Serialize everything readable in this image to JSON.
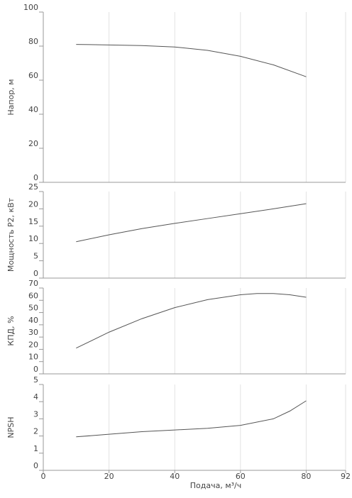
{
  "chart_data": [
    {
      "type": "line",
      "y_label": "Напор, м",
      "color": "#555555",
      "grid": true,
      "x": [
        10,
        20,
        30,
        40,
        50,
        60,
        70,
        80
      ],
      "values": [
        81,
        80.7,
        80.3,
        79.5,
        77.5,
        74,
        69,
        62
      ],
      "xlim": [
        0,
        92
      ],
      "xticks": [
        0,
        20,
        40,
        60,
        80,
        92
      ],
      "ylim": [
        0,
        100
      ],
      "yticks": [
        0,
        20,
        40,
        60,
        80,
        100
      ]
    },
    {
      "type": "line",
      "y_label": "Мощность P2, кВт",
      "color": "#555555",
      "grid": true,
      "x": [
        10,
        20,
        30,
        40,
        50,
        60,
        70,
        80
      ],
      "values": [
        10.5,
        12.5,
        14.3,
        15.8,
        17.2,
        18.6,
        20,
        21.5
      ],
      "xlim": [
        0,
        92
      ],
      "xticks": [
        0,
        20,
        40,
        60,
        80,
        92
      ],
      "ylim": [
        0,
        25
      ],
      "yticks": [
        0,
        5,
        10,
        15,
        20,
        25
      ]
    },
    {
      "type": "line",
      "y_label": "КПД, %",
      "color": "#555555",
      "grid": true,
      "x": [
        10,
        20,
        30,
        40,
        50,
        60,
        65,
        70,
        75,
        80
      ],
      "values": [
        21,
        34,
        45,
        54,
        60.5,
        64.5,
        65.5,
        65.5,
        64.5,
        62.5
      ],
      "xlim": [
        0,
        92
      ],
      "xticks": [
        0,
        20,
        40,
        60,
        80,
        92
      ],
      "ylim": [
        0,
        70
      ],
      "yticks": [
        0,
        10,
        20,
        30,
        40,
        50,
        60,
        70
      ]
    },
    {
      "type": "line",
      "y_label": "NPSH",
      "x_label": "Подача, м³/ч",
      "color": "#555555",
      "grid": true,
      "x": [
        10,
        20,
        30,
        40,
        50,
        60,
        70,
        75,
        80
      ],
      "values": [
        1.95,
        2.1,
        2.25,
        2.35,
        2.45,
        2.62,
        3.0,
        3.45,
        4.05
      ],
      "xlim": [
        0,
        92
      ],
      "xticks": [
        0,
        20,
        40,
        60,
        80,
        92
      ],
      "ylim": [
        0,
        5
      ],
      "yticks": [
        0,
        1,
        2,
        3,
        4,
        5
      ]
    }
  ]
}
